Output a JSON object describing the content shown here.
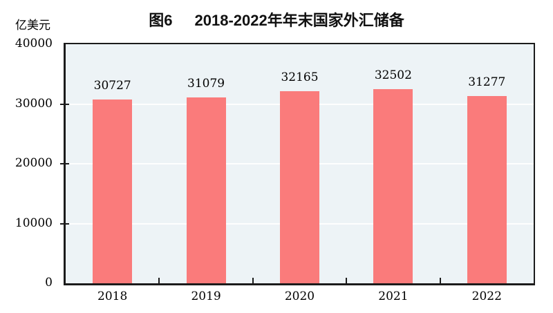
{
  "chart_data": {
    "type": "bar",
    "figure_label": "图6",
    "title": "2018-2022年年末国家外汇储备",
    "unit": "亿美元",
    "categories": [
      "2018",
      "2019",
      "2020",
      "2021",
      "2022"
    ],
    "values": [
      30727,
      31079,
      32165,
      32502,
      31277
    ],
    "value_labels": [
      "30727",
      "31079",
      "32165",
      "32502",
      "31277"
    ],
    "xlabel": "",
    "ylabel": "亿美元",
    "ylim": [
      0,
      40000
    ],
    "yticks": [
      0,
      10000,
      20000,
      30000,
      40000
    ],
    "grid": "horizontal-white",
    "legend": "none",
    "colors": {
      "bar": "#FA7B7B",
      "plot_background": "#EDF3F6",
      "axis_frame": "#1B1B1B",
      "gridline": "#FFFFFF",
      "text": "#000000",
      "page_background": "#FFFFFF"
    }
  }
}
